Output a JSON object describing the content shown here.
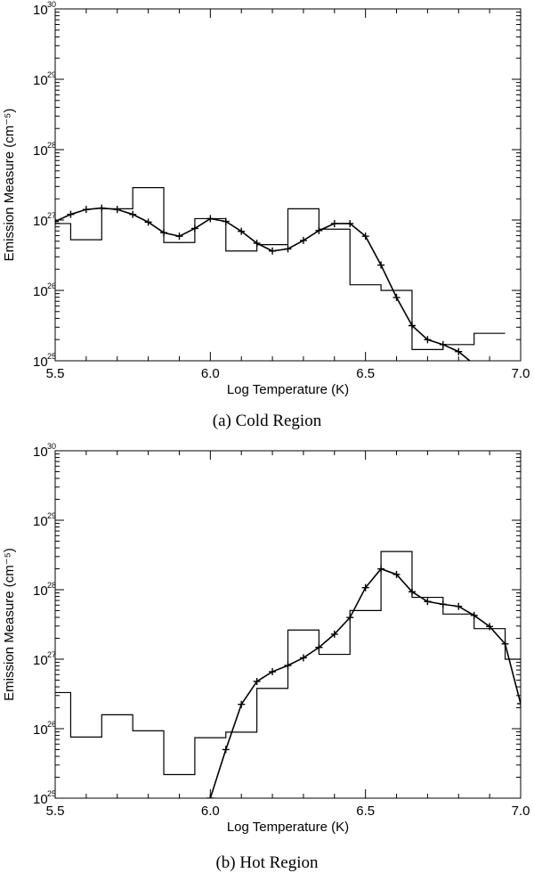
{
  "chart_data": [
    {
      "type": "line",
      "caption": "(a)  Cold Region",
      "xlabel": "Log Temperature (K)",
      "ylabel": "Emission Measure (cm⁻⁵)",
      "xlim": [
        5.5,
        7.0
      ],
      "ylim_log10": [
        25,
        30
      ],
      "y_scale": "log",
      "grid": false,
      "x_ticks": [
        "5.5",
        "6.0",
        "6.5",
        "7.0"
      ],
      "y_ticks": [
        {
          "base": "10",
          "exp": "25"
        },
        {
          "base": "10",
          "exp": "26"
        },
        {
          "base": "10",
          "exp": "27"
        },
        {
          "base": "10",
          "exp": "28"
        },
        {
          "base": "10",
          "exp": "29"
        },
        {
          "base": "10",
          "exp": "30"
        }
      ],
      "series": [
        {
          "style": "histogram",
          "x_edges": [
            5.5,
            5.55,
            5.65,
            5.75,
            5.85,
            5.95,
            6.05,
            6.15,
            6.25,
            6.35,
            6.45,
            6.55,
            6.65,
            6.75,
            6.85,
            6.95
          ],
          "log10_values": [
            26.95,
            26.72,
            27.16,
            27.46,
            26.68,
            27.02,
            26.56,
            26.65,
            27.16,
            26.87,
            26.08,
            26.0,
            25.16,
            25.23,
            25.39
          ]
        },
        {
          "style": "line-plus",
          "x": [
            5.5,
            5.55,
            5.6,
            5.65,
            5.7,
            5.75,
            5.8,
            5.85,
            5.9,
            5.95,
            6.0,
            6.05,
            6.1,
            6.15,
            6.2,
            6.25,
            6.3,
            6.35,
            6.4,
            6.45,
            6.5,
            6.55,
            6.6,
            6.65,
            6.7,
            6.75,
            6.8,
            6.85
          ],
          "log10_values": [
            26.98,
            27.08,
            27.15,
            27.17,
            27.15,
            27.08,
            26.97,
            26.82,
            26.77,
            26.88,
            27.02,
            26.98,
            26.84,
            26.67,
            26.56,
            26.59,
            26.71,
            26.85,
            26.95,
            26.95,
            26.77,
            26.36,
            25.9,
            25.5,
            25.3,
            25.23,
            25.13,
            24.95
          ]
        }
      ]
    },
    {
      "type": "line",
      "caption": "(b)  Hot Region",
      "xlabel": "Log Temperature (K)",
      "ylabel": "Emission Measure (cm⁻⁵)",
      "xlim": [
        5.5,
        7.0
      ],
      "ylim_log10": [
        25,
        30
      ],
      "y_scale": "log",
      "grid": false,
      "x_ticks": [
        "5.5",
        "6.0",
        "6.5",
        "7.0"
      ],
      "y_ticks": [
        {
          "base": "10",
          "exp": "25"
        },
        {
          "base": "10",
          "exp": "26"
        },
        {
          "base": "10",
          "exp": "27"
        },
        {
          "base": "10",
          "exp": "28"
        },
        {
          "base": "10",
          "exp": "29"
        },
        {
          "base": "10",
          "exp": "30"
        }
      ],
      "series": [
        {
          "style": "histogram",
          "x_edges": [
            5.5,
            5.55,
            5.65,
            5.75,
            5.85,
            5.95,
            6.05,
            6.15,
            6.25,
            6.35,
            6.45,
            6.55,
            6.65,
            6.75,
            6.85,
            6.95,
            7.0
          ],
          "log10_values": [
            26.52,
            25.88,
            26.2,
            25.97,
            25.34,
            25.87,
            25.95,
            26.58,
            27.42,
            27.07,
            27.7,
            28.55,
            27.89,
            27.65,
            27.44,
            27.0
          ]
        },
        {
          "style": "line-plus",
          "x": [
            6.0,
            6.05,
            6.1,
            6.15,
            6.2,
            6.25,
            6.3,
            6.35,
            6.4,
            6.45,
            6.5,
            6.55,
            6.6,
            6.65,
            6.7,
            6.75,
            6.8,
            6.85,
            6.9,
            6.95,
            7.0
          ],
          "log10_values": [
            25.0,
            25.7,
            26.35,
            26.68,
            26.82,
            26.91,
            27.02,
            27.17,
            27.36,
            27.6,
            28.03,
            28.3,
            28.22,
            27.97,
            27.83,
            27.79,
            27.76,
            27.63,
            27.47,
            27.22,
            26.36
          ]
        }
      ]
    }
  ]
}
